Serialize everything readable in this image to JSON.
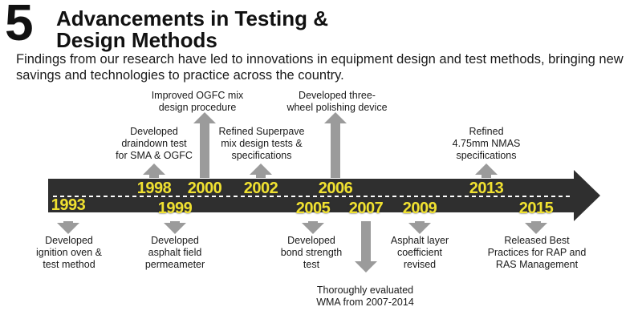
{
  "header": {
    "number": "5",
    "title_line1": "Advancements in Testing &",
    "title_line2": "Design Methods",
    "subtitle": "Findings from our research have led to innovations in equipment design and test methods, bringing new savings and technologies to practice across the country."
  },
  "colors": {
    "bar": "#2f2f2f",
    "arrow": "#9b9b9b",
    "year": "#f0e130",
    "dashes": "#ffffff"
  },
  "timeline": {
    "events": [
      {
        "year": "1993",
        "direction": "down",
        "label": [
          "Developed",
          "ignition oven &",
          "test method"
        ]
      },
      {
        "year": "1998",
        "direction": "up",
        "label": [
          "Developed",
          "draindown test",
          "for SMA & OGFC"
        ]
      },
      {
        "year": "1999",
        "direction": "down",
        "label": [
          "Developed",
          "asphalt field",
          "permeameter"
        ]
      },
      {
        "year": "2000",
        "direction": "up",
        "label": [
          "Improved OGFC mix",
          "design procedure"
        ]
      },
      {
        "year": "2002",
        "direction": "up",
        "label": [
          "Refined Superpave",
          "mix design tests &",
          "specifications"
        ]
      },
      {
        "year": "2005",
        "direction": "down",
        "label": [
          "Developed",
          "bond strength",
          "test"
        ]
      },
      {
        "year": "2006",
        "direction": "up",
        "label": [
          "Developed three-",
          "wheel polishing device"
        ]
      },
      {
        "year": "2007",
        "direction": "down",
        "label": [
          "Thoroughly evaluated",
          "WMA from 2007-2014"
        ]
      },
      {
        "year": "2009",
        "direction": "down",
        "label": [
          "Asphalt layer",
          "coefficient",
          "revised"
        ]
      },
      {
        "year": "2013",
        "direction": "up",
        "label": [
          "Refined",
          "4.75mm NMAS",
          "specifications"
        ]
      },
      {
        "year": "2015",
        "direction": "down",
        "label": [
          "Released Best",
          "Practices for RAP and",
          "RAS Management"
        ]
      }
    ]
  }
}
